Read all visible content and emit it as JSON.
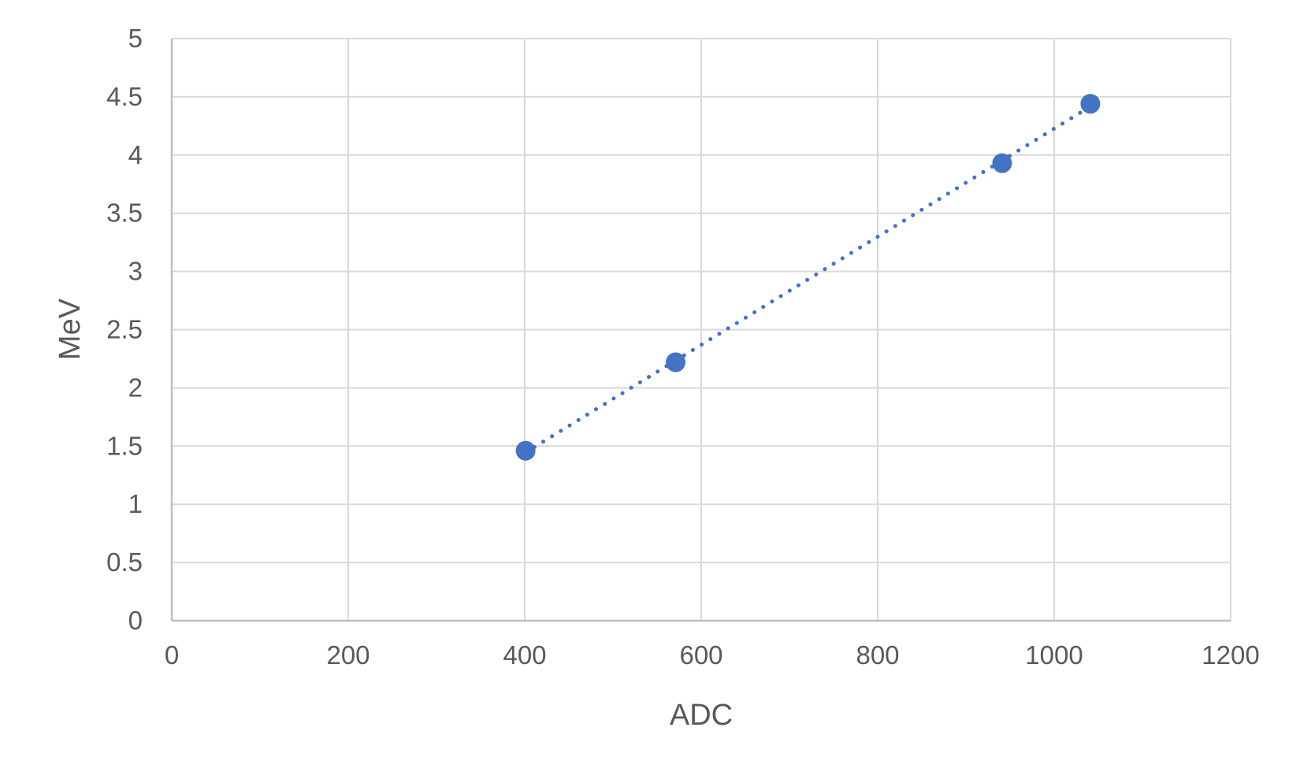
{
  "chart_data": {
    "type": "scatter",
    "title": "",
    "xlabel": "ADC",
    "ylabel": "MeV",
    "xlim": [
      0,
      1200
    ],
    "ylim": [
      0,
      5
    ],
    "x_ticks": [
      0,
      200,
      400,
      600,
      800,
      1000,
      1200
    ],
    "y_ticks": [
      0,
      0.5,
      1,
      1.5,
      2,
      2.5,
      3,
      3.5,
      4,
      4.5,
      5
    ],
    "grid": true,
    "series": [
      {
        "x": [
          401,
          571,
          941,
          1041
        ],
        "y": [
          1.46,
          2.22,
          3.93,
          4.44
        ],
        "color": "#4472C4",
        "trendline": "linear-dotted"
      }
    ],
    "colors": {
      "marker": "#4472C4",
      "grid": "#d9d9d9",
      "axis": "#bfbfbf",
      "text": "#595959"
    }
  }
}
